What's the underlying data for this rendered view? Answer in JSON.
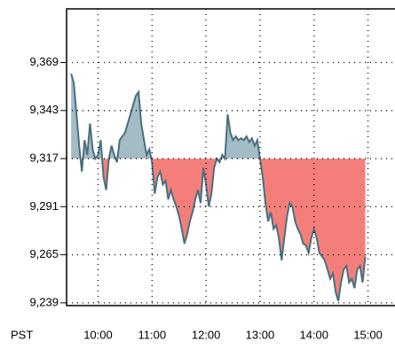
{
  "chart_data": {
    "type": "baseline-area",
    "x_label": "PST",
    "x": [
      570,
      573,
      576,
      579,
      582,
      585,
      588,
      591,
      594,
      597,
      600,
      603,
      606,
      609,
      612,
      615,
      618,
      621,
      624,
      627,
      630,
      633,
      636,
      639,
      642,
      645,
      648,
      651,
      654,
      657,
      660,
      663,
      666,
      669,
      672,
      675,
      678,
      681,
      684,
      687,
      690,
      693,
      696,
      699,
      702,
      705,
      708,
      711,
      714,
      717,
      720,
      723,
      726,
      729,
      732,
      735,
      738,
      741,
      744,
      747,
      750,
      753,
      756,
      759,
      762,
      765,
      768,
      771,
      774,
      777,
      780,
      783,
      786,
      789,
      792,
      795,
      798,
      801,
      804,
      807,
      810,
      813,
      816,
      819,
      822,
      825,
      828,
      831,
      834,
      837,
      840,
      843,
      846,
      849,
      852,
      855,
      858,
      861,
      864,
      867,
      870,
      873,
      876,
      879,
      882,
      885,
      888,
      891,
      894,
      897
    ],
    "values": [
      9363,
      9358,
      9341,
      9324,
      9310,
      9327,
      9319,
      9336,
      9322,
      9317,
      9319,
      9327,
      9307,
      9300,
      9317,
      9324,
      9319,
      9315,
      9327,
      9329,
      9331,
      9336,
      9341,
      9346,
      9351,
      9353,
      9336,
      9327,
      9319,
      9322,
      9315,
      9298,
      9307,
      9310,
      9303,
      9305,
      9295,
      9300,
      9295,
      9291,
      9286,
      9279,
      9271,
      9276,
      9283,
      9288,
      9295,
      9300,
      9293,
      9312,
      9303,
      9291,
      9298,
      9312,
      9317,
      9315,
      9319,
      9317,
      9341,
      9331,
      9327,
      9329,
      9327,
      9328,
      9327,
      9329,
      9326,
      9328,
      9324,
      9327,
      9317,
      9307,
      9293,
      9283,
      9288,
      9279,
      9281,
      9274,
      9262,
      9274,
      9286,
      9293,
      9291,
      9283,
      9279,
      9276,
      9271,
      9270,
      9266,
      9274,
      9279,
      9274,
      9266,
      9264,
      9262,
      9257,
      9252,
      9255,
      9245,
      9240,
      9250,
      9257,
      9259,
      9250,
      9252,
      9247,
      9257,
      9259,
      9250,
      9264
    ],
    "baseline": 9317,
    "line_color": "#4a6f7e",
    "above_color": "#a3bcc6",
    "below_color": "#f47f7a",
    "xlim": [
      565,
      930
    ],
    "xticks": [
      {
        "value": 600,
        "label": "10:00"
      },
      {
        "value": 660,
        "label": "11:00"
      },
      {
        "value": 720,
        "label": "12:00"
      },
      {
        "value": 780,
        "label": "13:00"
      },
      {
        "value": 840,
        "label": "14:00"
      },
      {
        "value": 900,
        "label": "15:00"
      }
    ],
    "ylim": [
      9237.5,
      9398
    ],
    "yticks": [
      {
        "value": 9239,
        "label": "9,239"
      },
      {
        "value": 9265,
        "label": "9,265"
      },
      {
        "value": 9291,
        "label": "9,291"
      },
      {
        "value": 9317,
        "label": "9,317"
      },
      {
        "value": 9343,
        "label": "9,343"
      },
      {
        "value": 9369,
        "label": "9,369"
      }
    ],
    "grid": true
  }
}
